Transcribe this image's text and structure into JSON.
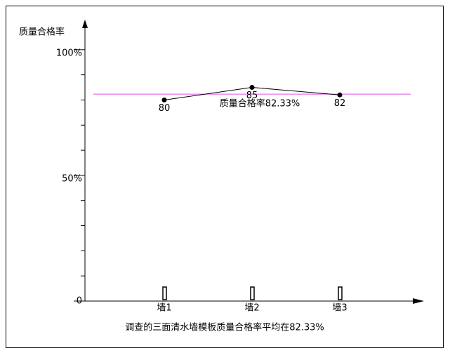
{
  "chart_data": {
    "type": "line",
    "y_label": "质量合格率",
    "categories": [
      "墙1",
      "墙2",
      "墙3"
    ],
    "series": [
      {
        "color": "#000000",
        "values": [
          80,
          85,
          82
        ]
      }
    ],
    "ylim": [
      0,
      110
    ],
    "yticks": [
      0,
      {
        "value": 50,
        "label": "50%"
      },
      {
        "value": 100,
        "label": "100%"
      }
    ],
    "minor_yticks": [
      10,
      20,
      30,
      40,
      60,
      70,
      80,
      90
    ],
    "reference": {
      "value": 82.33,
      "label": "质量合格率82.33%",
      "color": "#e050e0"
    },
    "caption": "调查的三面清水墙模板质量合格率平均在82.33%"
  }
}
